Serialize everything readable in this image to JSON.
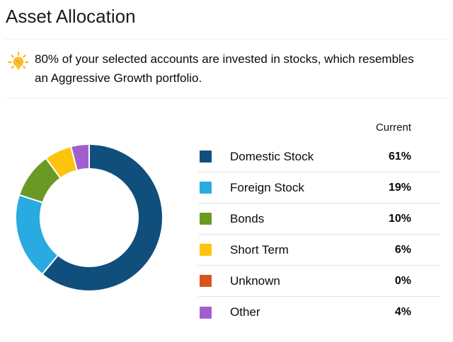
{
  "page": {
    "title": "Asset Allocation"
  },
  "insight": {
    "text": "80% of your selected accounts are invested in stocks, which resembles an Aggressive Growth portfolio.",
    "icon": "lightbulb-icon",
    "icon_color": "#f9b616"
  },
  "legend": {
    "column_header": "Current"
  },
  "chart_data": {
    "type": "pie",
    "subtype": "donut",
    "title": "Asset Allocation",
    "categories": [
      "Domestic Stock",
      "Foreign Stock",
      "Bonds",
      "Short Term",
      "Unknown",
      "Other"
    ],
    "values": [
      61,
      19,
      10,
      6,
      0,
      4
    ],
    "value_labels": [
      "61%",
      "19%",
      "10%",
      "6%",
      "0%",
      "4%"
    ],
    "colors": [
      "#104e7c",
      "#29abe2",
      "#6a9a23",
      "#fcc40d",
      "#d9541e",
      "#a15fcd"
    ],
    "legend_position": "right",
    "start_angle_deg": 0,
    "direction": "clockwise",
    "inner_radius_ratio": 0.66,
    "segment_gap_color": "#ffffff"
  }
}
